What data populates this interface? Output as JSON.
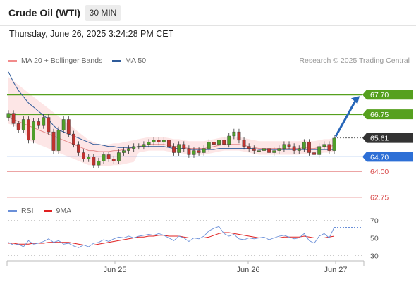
{
  "header": {
    "title": "Crude Oil (WTI)",
    "timeframe": "30 MIN",
    "timestamp": "Thursday, June 26, 2025 3:24:28 PM CET"
  },
  "legend": {
    "main": [
      {
        "label": "MA 20 + Bollinger Bands",
        "color": "#f28b8b"
      },
      {
        "label": "MA 50",
        "color": "#2f5b9a"
      }
    ],
    "rsi": [
      {
        "label": "RSI",
        "color": "#6a8fd8"
      },
      {
        "label": "9MA",
        "color": "#e02020"
      }
    ],
    "copyright": "Research © 2025 Trading Central"
  },
  "colors": {
    "resistance": "#56a01e",
    "support": "#d94a4a",
    "pivot": "#2d6fd6",
    "price_tag": "#333333",
    "candle_up": "#4f9e2a",
    "candle_down": "#c0332f",
    "bollinger_fill": "#fde3e3"
  },
  "chart_data": [
    {
      "type": "candlestick",
      "x_labels": [
        "Jun 25",
        "Jun 26",
        "Jun 27"
      ],
      "ylim": [
        62.4,
        69.0
      ],
      "last_price": 65.61,
      "levels": [
        {
          "label": "67.70",
          "value": 67.7,
          "kind": "resistance"
        },
        {
          "label": "66.75",
          "value": 66.75,
          "kind": "resistance"
        },
        {
          "label": "64.70",
          "value": 64.7,
          "kind": "pivot"
        },
        {
          "label": "64.00",
          "value": 64.0,
          "kind": "support"
        },
        {
          "label": "62.75",
          "value": 62.75,
          "kind": "support"
        }
      ],
      "price_tag": "65.61",
      "closes": [
        66.8,
        66.3,
        66.0,
        66.5,
        65.5,
        66.4,
        66.2,
        66.6,
        65.9,
        65.0,
        66.0,
        66.5,
        65.8,
        65.3,
        64.9,
        64.6,
        64.7,
        64.3,
        64.5,
        64.8,
        64.6,
        64.5,
        64.9,
        65.0,
        65.1,
        65.2,
        65.2,
        65.3,
        65.4,
        65.5,
        65.4,
        65.5,
        65.2,
        64.9,
        65.3,
        65.1,
        64.8,
        65.0,
        64.9,
        65.1,
        65.4,
        65.3,
        65.5,
        65.3,
        65.7,
        65.9,
        65.5,
        65.2,
        65.1,
        65.0,
        65.0,
        65.1,
        64.9,
        65.0,
        65.1,
        65.3,
        65.2,
        65.0,
        65.1,
        65.4,
        64.9,
        64.8,
        65.2,
        65.3,
        65.0,
        65.6
      ],
      "ma50": [
        68.8,
        68.3,
        67.9,
        67.6,
        67.3,
        67.1,
        66.9,
        66.7,
        66.5,
        66.2,
        66.0,
        65.9,
        65.8,
        65.7,
        65.6,
        65.5,
        65.4,
        65.3,
        65.3,
        65.25,
        65.2,
        65.2,
        65.15,
        65.15,
        65.15,
        65.15,
        65.2,
        65.2,
        65.2,
        65.2,
        65.2,
        65.2,
        65.15,
        65.1,
        65.1,
        65.1,
        65.05,
        65.05,
        65.05,
        65.05,
        65.05,
        65.05,
        65.1,
        65.1,
        65.1,
        65.1,
        65.1,
        65.1,
        65.1,
        65.1,
        65.05,
        65.05,
        65.05,
        65.05,
        65.05,
        65.05,
        65.05,
        65.05,
        65.05,
        65.05,
        65.05,
        65.05,
        65.05,
        65.05,
        65.05,
        65.05
      ],
      "ma20": [
        66.6,
        66.5,
        66.4,
        66.3,
        66.2,
        66.1,
        66.0,
        65.9,
        65.8,
        65.7,
        65.6,
        65.5,
        65.4,
        65.3,
        65.2,
        65.1,
        65.0,
        65.0,
        64.95,
        64.95,
        64.95,
        65.0,
        65.0,
        65.05,
        65.1,
        65.15,
        65.2,
        65.25,
        65.3,
        65.3,
        65.3,
        65.3,
        65.25,
        65.2,
        65.2,
        65.15,
        65.1,
        65.1,
        65.1,
        65.1,
        65.15,
        65.2,
        65.25,
        65.3,
        65.3,
        65.3,
        65.3,
        65.25,
        65.2,
        65.15,
        65.1,
        65.1,
        65.1,
        65.1,
        65.1,
        65.1,
        65.1,
        65.1,
        65.1,
        65.15,
        65.1,
        65.1,
        65.15,
        65.2,
        65.2,
        65.25
      ]
    },
    {
      "type": "line",
      "name": "RSI",
      "ylim": [
        20,
        80
      ],
      "tick_labels": [
        "70",
        "50",
        "30"
      ],
      "ticks": [
        70,
        50,
        30
      ],
      "rsi": [
        45,
        42,
        43,
        40,
        47,
        43,
        44,
        46,
        49,
        45,
        47,
        43,
        44,
        41,
        39,
        42,
        40,
        44,
        45,
        48,
        46,
        49,
        51,
        50,
        52,
        50,
        52,
        53,
        54,
        53,
        55,
        53,
        50,
        47,
        52,
        50,
        46,
        50,
        49,
        52,
        58,
        61,
        63,
        55,
        52,
        54,
        49,
        48,
        50,
        49,
        50,
        51,
        48,
        50,
        52,
        53,
        51,
        49,
        50,
        55,
        47,
        44,
        52,
        55,
        50,
        62
      ],
      "ma9": [
        44,
        44,
        43,
        43,
        43,
        44,
        44,
        44,
        45,
        45,
        45,
        45,
        45,
        44,
        43,
        42,
        42,
        42,
        43,
        44,
        45,
        46,
        47,
        48,
        49,
        50,
        51,
        51,
        52,
        52,
        53,
        53,
        52,
        52,
        52,
        51,
        50,
        50,
        50,
        50,
        51,
        53,
        55,
        56,
        56,
        55,
        54,
        53,
        52,
        51,
        50,
        50,
        50,
        50,
        50,
        51,
        51,
        51,
        51,
        52,
        51,
        50,
        50,
        50,
        51,
        52
      ]
    }
  ]
}
